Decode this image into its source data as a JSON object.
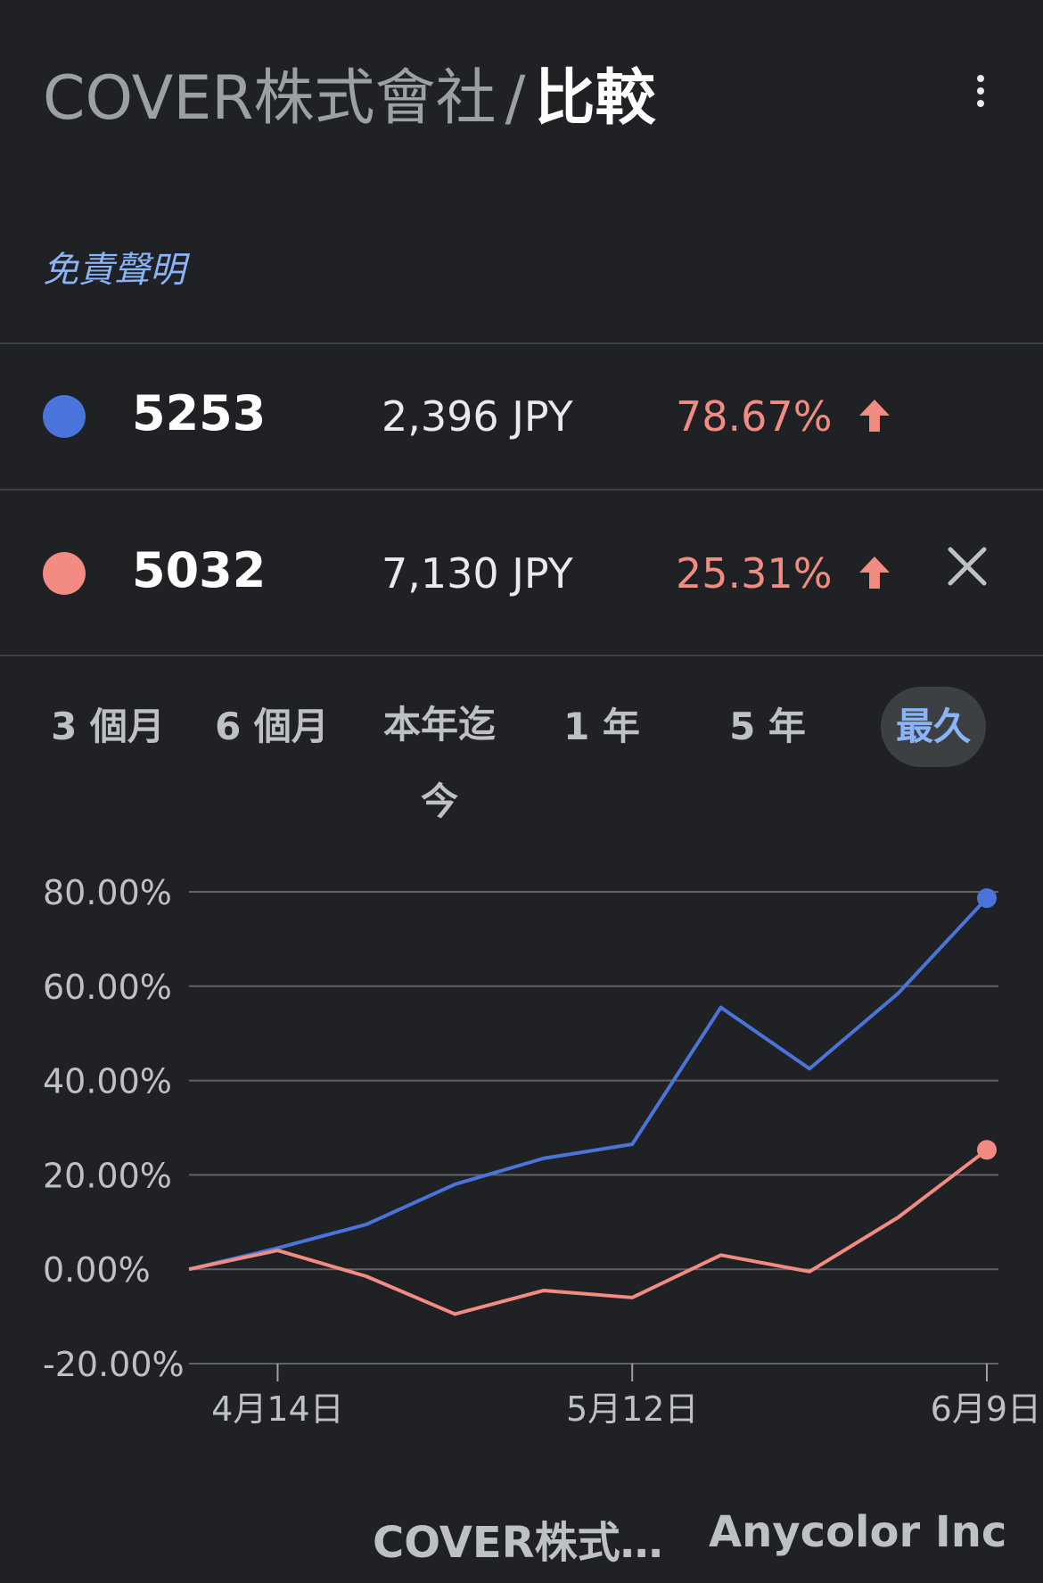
{
  "header": {
    "company": "COVER株式會社",
    "separator": "/",
    "page": "比較",
    "disclaimer": "免責聲明"
  },
  "comparisons": [
    {
      "ticker": "5253",
      "price": "2,396 JPY",
      "change": "78.67%",
      "direction": "up",
      "color": "#4a74d9"
    },
    {
      "ticker": "5032",
      "price": "7,130 JPY",
      "change": "25.31%",
      "direction": "up",
      "color": "#f28b82"
    }
  ],
  "ranges": [
    {
      "label": "3 個月",
      "active": false
    },
    {
      "label": "6 個月",
      "active": false
    },
    {
      "label": "本年迄今",
      "active": false
    },
    {
      "label": "1 年",
      "active": false
    },
    {
      "label": "5 年",
      "active": false
    },
    {
      "label": "最久",
      "active": true
    }
  ],
  "chart_data": {
    "type": "line",
    "ylim": [
      -20,
      80
    ],
    "y_ticks": [
      "80.00%",
      "60.00%",
      "40.00%",
      "20.00%",
      "0.00%",
      "-20.00%"
    ],
    "x_tick_labels": [
      "4月14日",
      "5月12日",
      "6月9日"
    ],
    "x_tick_indices": [
      1,
      5,
      9
    ],
    "grid": true,
    "series": [
      {
        "name": "COVER株式…",
        "color": "#4a74d9",
        "values": [
          0,
          4.5,
          9.5,
          18,
          23.5,
          26.5,
          55.5,
          42.5,
          58.5,
          78.67
        ]
      },
      {
        "name": "Anycolor Inc",
        "color": "#f28b82",
        "values": [
          0,
          4,
          -1.5,
          -9.5,
          -4.5,
          -6,
          3,
          -0.5,
          11,
          25.31
        ]
      }
    ]
  },
  "bottom_labels": [
    "COVER株式…",
    "Anycolor Inc"
  ]
}
